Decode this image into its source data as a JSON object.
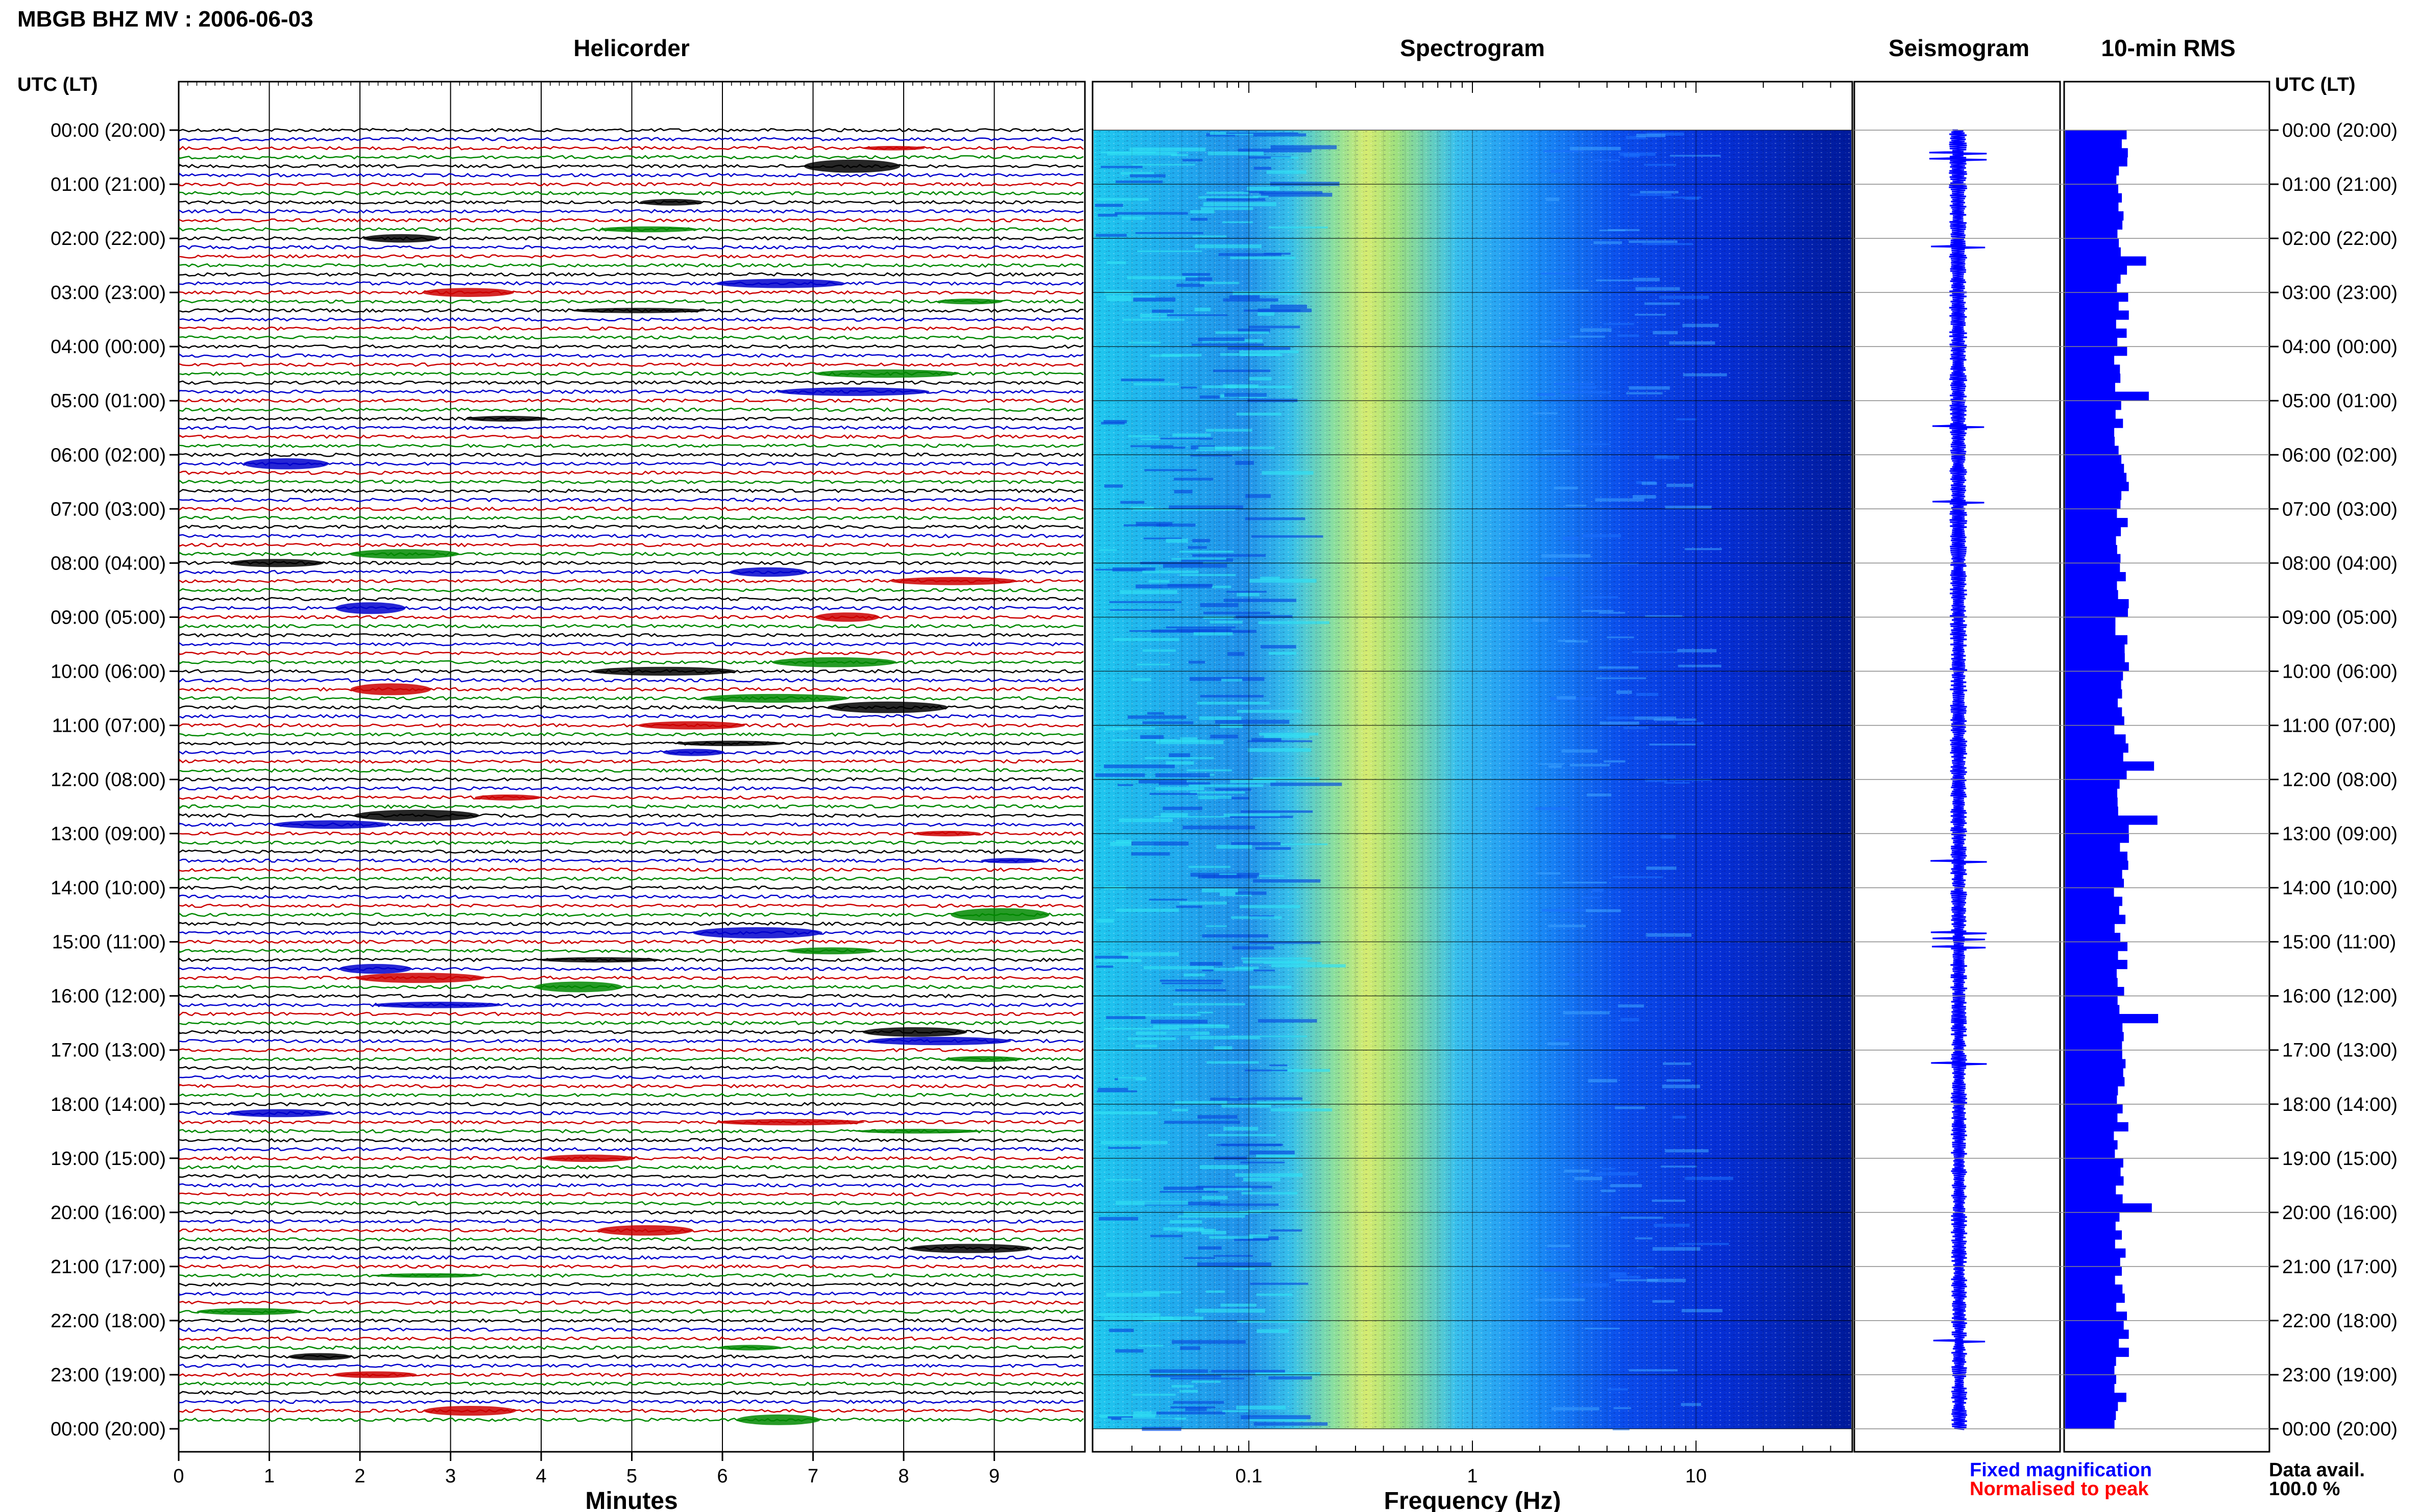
{
  "page_title": "MBGB BHZ MV : 2006-06-03",
  "panels": {
    "helicorder": "Helicorder",
    "spectrogram": "Spectrogram",
    "seismogram": "Seismogram",
    "rms": "10-min RMS"
  },
  "axis_header_left": "UTC (LT)",
  "axis_header_right": "UTC (LT)",
  "time_labels": [
    "00:00 (20:00)",
    "01:00 (21:00)",
    "02:00 (22:00)",
    "03:00 (23:00)",
    "04:00 (00:00)",
    "05:00 (01:00)",
    "06:00 (02:00)",
    "07:00 (03:00)",
    "08:00 (04:00)",
    "09:00 (05:00)",
    "10:00 (06:00)",
    "11:00 (07:00)",
    "12:00 (08:00)",
    "13:00 (09:00)",
    "14:00 (10:00)",
    "15:00 (11:00)",
    "16:00 (12:00)",
    "17:00 (13:00)",
    "18:00 (14:00)",
    "19:00 (15:00)",
    "20:00 (16:00)",
    "21:00 (17:00)",
    "22:00 (18:00)",
    "23:00 (19:00)",
    "00:00 (20:00)"
  ],
  "legend": {
    "fixed": "Fixed magnification",
    "normalised": "Normalised to peak",
    "data_avail_label": "Data avail.",
    "data_avail_value": "100.0 %"
  },
  "colors": {
    "trace_colors": [
      "#000000",
      "#0000cc",
      "#cc0000",
      "#008800"
    ],
    "seismogram": "#0000ff",
    "rms": "#0000ff",
    "fixed_text": "#0000ff",
    "normalised_text": "#ff0000"
  },
  "chart_data": [
    {
      "type": "line",
      "title": "Helicorder",
      "xlabel": "Minutes",
      "x_ticks": [
        "0",
        "1",
        "2",
        "3",
        "4",
        "5",
        "6",
        "7",
        "8",
        "9"
      ],
      "xlim": [
        0,
        10
      ],
      "rows_per_hour": 6,
      "row_colors_cycle": [
        "black",
        "blue",
        "red",
        "green"
      ],
      "grid": true
    },
    {
      "type": "heatmap",
      "title": "Spectrogram",
      "xlabel": "Frequency (Hz)",
      "x_scale": "log",
      "xlim": [
        0.02,
        50
      ],
      "x_ticks": [
        "0.1",
        "1",
        "10"
      ],
      "grid": true
    },
    {
      "type": "line",
      "title": "Seismogram",
      "grid": true
    },
    {
      "type": "bar",
      "title": "10-min RMS",
      "orientation": "horizontal",
      "grid": true
    }
  ]
}
